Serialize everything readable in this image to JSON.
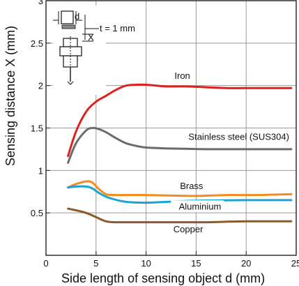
{
  "chart_data": {
    "type": "line",
    "xlabel": "Side length of sensing object d (mm)",
    "ylabel": "Sensing distance X (mm)",
    "xlim": [
      0,
      25
    ],
    "ylim": [
      0,
      3
    ],
    "x_ticks": [
      0,
      5,
      10,
      15,
      20,
      25
    ],
    "y_ticks": [
      0.5,
      1,
      1.5,
      2,
      2.5,
      3
    ],
    "x_tick_labels": [
      "0",
      "5",
      "10",
      "15",
      "20",
      "25"
    ],
    "y_tick_labels": [
      "0.5",
      "1",
      "1.5",
      "2",
      "2.5",
      "3"
    ],
    "grid": true,
    "series": [
      {
        "name": "Iron",
        "color": "#e02020",
        "points": [
          [
            2.2,
            1.17
          ],
          [
            3,
            1.46
          ],
          [
            4,
            1.69
          ],
          [
            5,
            1.81
          ],
          [
            6,
            1.88
          ],
          [
            7,
            1.95
          ],
          [
            8,
            2.0
          ],
          [
            9,
            2.01
          ],
          [
            10,
            2.01
          ],
          [
            11,
            2.0
          ],
          [
            12,
            1.99
          ],
          [
            14,
            1.99
          ],
          [
            16,
            1.98
          ],
          [
            18,
            1.97
          ],
          [
            20,
            1.97
          ],
          [
            22,
            1.97
          ],
          [
            24.5,
            1.97
          ]
        ]
      },
      {
        "name": "Stainless steel (SUS304)",
        "color": "#6b6b6b",
        "points": [
          [
            2.2,
            1.09
          ],
          [
            3,
            1.32
          ],
          [
            4,
            1.47
          ],
          [
            4.6,
            1.5
          ],
          [
            5.2,
            1.49
          ],
          [
            6,
            1.45
          ],
          [
            7,
            1.38
          ],
          [
            8,
            1.32
          ],
          [
            9,
            1.29
          ],
          [
            10,
            1.27
          ],
          [
            12,
            1.26
          ],
          [
            14,
            1.255
          ],
          [
            16,
            1.25
          ],
          [
            20,
            1.25
          ],
          [
            24.5,
            1.25
          ]
        ]
      },
      {
        "name": "Brass",
        "color": "#f28c1c",
        "points": [
          [
            2.2,
            0.8
          ],
          [
            3,
            0.84
          ],
          [
            4,
            0.87
          ],
          [
            4.6,
            0.86
          ],
          [
            5.2,
            0.79
          ],
          [
            6,
            0.72
          ],
          [
            7,
            0.71
          ],
          [
            10,
            0.71
          ],
          [
            14,
            0.7
          ],
          [
            15.5,
            0.7
          ],
          [
            18,
            0.71
          ],
          [
            21,
            0.71
          ],
          [
            24.5,
            0.72
          ]
        ]
      },
      {
        "name": "Aluminium",
        "color": "#1aa3d6",
        "points": [
          [
            2.2,
            0.8
          ],
          [
            3,
            0.81
          ],
          [
            4,
            0.81
          ],
          [
            4.6,
            0.79
          ],
          [
            5.5,
            0.72
          ],
          [
            6.5,
            0.67
          ],
          [
            8,
            0.63
          ],
          [
            10,
            0.62
          ],
          [
            12,
            0.63
          ],
          [
            14,
            0.64
          ],
          [
            16,
            0.645
          ],
          [
            20,
            0.65
          ],
          [
            24.5,
            0.65
          ]
        ]
      },
      {
        "name": "Copper",
        "color": "#8c5a2b",
        "points": [
          [
            2.2,
            0.55
          ],
          [
            3,
            0.53
          ],
          [
            4,
            0.5
          ],
          [
            5,
            0.45
          ],
          [
            6,
            0.4
          ],
          [
            7,
            0.39
          ],
          [
            9,
            0.39
          ],
          [
            12,
            0.39
          ],
          [
            16,
            0.39
          ],
          [
            20,
            0.4
          ],
          [
            24.5,
            0.4
          ]
        ]
      }
    ],
    "inset": {
      "d_label": "d",
      "x_label": "X",
      "t_label": "t = 1 mm"
    }
  }
}
